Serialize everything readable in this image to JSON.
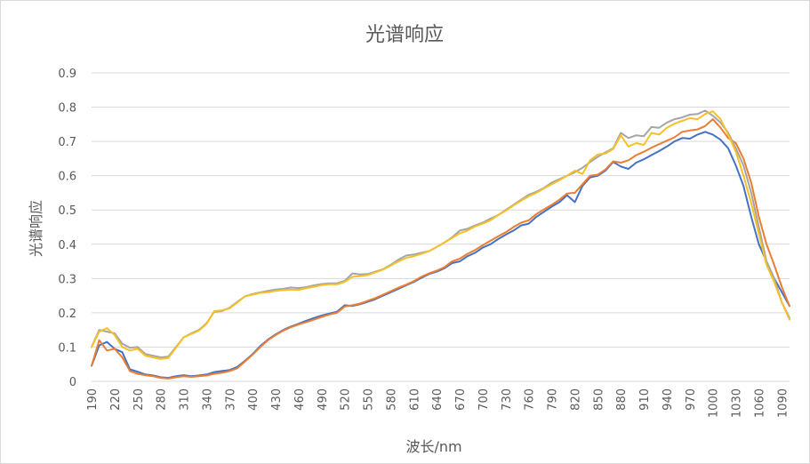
{
  "chart_data": {
    "type": "line",
    "title": "光谱响应",
    "xlabel": "波长/nm",
    "ylabel": "光谱响应",
    "ylim": [
      0,
      0.9
    ],
    "yticks": [
      "0",
      "0.1",
      "0.2",
      "0.3",
      "0.4",
      "0.5",
      "0.6",
      "0.7",
      "0.8",
      "0.9"
    ],
    "ytick_values": [
      0,
      0.1,
      0.2,
      0.3,
      0.4,
      0.5,
      0.6,
      0.7,
      0.8,
      0.9
    ],
    "xticks": [
      "190",
      "220",
      "250",
      "280",
      "310",
      "340",
      "370",
      "400",
      "430",
      "460",
      "490",
      "520",
      "550",
      "580",
      "610",
      "640",
      "670",
      "700",
      "730",
      "760",
      "790",
      "820",
      "850",
      "880",
      "910",
      "940",
      "970",
      "1000",
      "1030",
      "1060",
      "1090"
    ],
    "xtick_values": [
      190,
      220,
      250,
      280,
      310,
      340,
      370,
      400,
      430,
      460,
      490,
      520,
      550,
      580,
      610,
      640,
      670,
      700,
      730,
      760,
      790,
      820,
      850,
      880,
      910,
      940,
      970,
      1000,
      1030,
      1060,
      1090
    ],
    "xlim": [
      190,
      1100
    ],
    "grid": "horizontal",
    "x": [
      190,
      200,
      210,
      220,
      230,
      240,
      250,
      260,
      270,
      280,
      290,
      300,
      310,
      320,
      330,
      340,
      350,
      360,
      370,
      380,
      390,
      400,
      410,
      420,
      430,
      440,
      450,
      460,
      470,
      480,
      490,
      500,
      510,
      520,
      530,
      540,
      550,
      560,
      570,
      580,
      590,
      600,
      610,
      620,
      630,
      640,
      650,
      660,
      670,
      680,
      690,
      700,
      710,
      720,
      730,
      740,
      750,
      760,
      770,
      780,
      790,
      800,
      810,
      820,
      830,
      840,
      850,
      860,
      870,
      880,
      890,
      900,
      910,
      920,
      930,
      940,
      950,
      960,
      970,
      980,
      990,
      1000,
      1010,
      1020,
      1030,
      1040,
      1050,
      1060,
      1070,
      1080,
      1090,
      1100
    ],
    "series": [
      {
        "color": "#4472c4",
        "values": [
          0.045,
          0.105,
          0.115,
          0.095,
          0.085,
          0.035,
          0.028,
          0.02,
          0.017,
          0.012,
          0.01,
          0.015,
          0.018,
          0.015,
          0.017,
          0.02,
          0.027,
          0.03,
          0.033,
          0.042,
          0.06,
          0.08,
          0.103,
          0.122,
          0.137,
          0.15,
          0.16,
          0.168,
          0.177,
          0.185,
          0.192,
          0.198,
          0.203,
          0.222,
          0.22,
          0.225,
          0.232,
          0.24,
          0.25,
          0.26,
          0.27,
          0.28,
          0.29,
          0.302,
          0.313,
          0.32,
          0.33,
          0.345,
          0.35,
          0.365,
          0.375,
          0.39,
          0.4,
          0.415,
          0.428,
          0.44,
          0.455,
          0.46,
          0.48,
          0.495,
          0.51,
          0.523,
          0.543,
          0.523,
          0.57,
          0.595,
          0.6,
          0.615,
          0.64,
          0.627,
          0.62,
          0.638,
          0.648,
          0.66,
          0.672,
          0.685,
          0.7,
          0.71,
          0.708,
          0.72,
          0.728,
          0.72,
          0.705,
          0.68,
          0.63,
          0.57,
          0.48,
          0.4,
          0.35,
          0.3,
          0.26,
          0.22
        ]
      },
      {
        "color": "#ed7d31",
        "values": [
          0.045,
          0.12,
          0.09,
          0.095,
          0.07,
          0.03,
          0.022,
          0.018,
          0.015,
          0.01,
          0.008,
          0.012,
          0.015,
          0.013,
          0.015,
          0.017,
          0.022,
          0.025,
          0.03,
          0.038,
          0.058,
          0.078,
          0.1,
          0.12,
          0.135,
          0.148,
          0.158,
          0.166,
          0.173,
          0.18,
          0.188,
          0.195,
          0.2,
          0.218,
          0.222,
          0.227,
          0.235,
          0.243,
          0.253,
          0.263,
          0.273,
          0.282,
          0.292,
          0.305,
          0.315,
          0.323,
          0.333,
          0.35,
          0.358,
          0.372,
          0.383,
          0.397,
          0.41,
          0.423,
          0.435,
          0.45,
          0.463,
          0.47,
          0.488,
          0.502,
          0.515,
          0.53,
          0.548,
          0.55,
          0.575,
          0.6,
          0.603,
          0.618,
          0.642,
          0.638,
          0.645,
          0.66,
          0.67,
          0.682,
          0.692,
          0.702,
          0.712,
          0.728,
          0.732,
          0.735,
          0.745,
          0.765,
          0.74,
          0.71,
          0.695,
          0.65,
          0.58,
          0.48,
          0.4,
          0.34,
          0.275,
          0.22
        ]
      },
      {
        "color": "#a5a5a5",
        "values": [
          0.1,
          0.15,
          0.145,
          0.14,
          0.11,
          0.098,
          0.1,
          0.08,
          0.075,
          0.07,
          0.072,
          0.1,
          0.128,
          0.14,
          0.15,
          0.17,
          0.203,
          0.205,
          0.215,
          0.232,
          0.248,
          0.255,
          0.26,
          0.264,
          0.268,
          0.27,
          0.274,
          0.272,
          0.275,
          0.28,
          0.284,
          0.286,
          0.286,
          0.293,
          0.315,
          0.312,
          0.313,
          0.32,
          0.327,
          0.34,
          0.355,
          0.367,
          0.37,
          0.375,
          0.38,
          0.392,
          0.405,
          0.42,
          0.44,
          0.445,
          0.455,
          0.463,
          0.475,
          0.485,
          0.5,
          0.515,
          0.53,
          0.545,
          0.553,
          0.565,
          0.58,
          0.59,
          0.6,
          0.61,
          0.623,
          0.64,
          0.655,
          0.668,
          0.68,
          0.725,
          0.71,
          0.718,
          0.715,
          0.742,
          0.74,
          0.755,
          0.765,
          0.77,
          0.778,
          0.78,
          0.79,
          0.775,
          0.755,
          0.725,
          0.68,
          0.63,
          0.55,
          0.45,
          0.35,
          0.3,
          0.23,
          0.185
        ]
      },
      {
        "color": "#f5c126",
        "values": [
          0.1,
          0.145,
          0.155,
          0.135,
          0.1,
          0.09,
          0.095,
          0.075,
          0.07,
          0.065,
          0.068,
          0.098,
          0.128,
          0.138,
          0.148,
          0.168,
          0.205,
          0.207,
          0.213,
          0.23,
          0.248,
          0.253,
          0.258,
          0.26,
          0.264,
          0.266,
          0.268,
          0.267,
          0.272,
          0.276,
          0.281,
          0.283,
          0.283,
          0.29,
          0.305,
          0.307,
          0.31,
          0.318,
          0.326,
          0.338,
          0.35,
          0.36,
          0.365,
          0.372,
          0.38,
          0.392,
          0.405,
          0.418,
          0.432,
          0.44,
          0.452,
          0.46,
          0.47,
          0.485,
          0.498,
          0.513,
          0.527,
          0.54,
          0.55,
          0.563,
          0.575,
          0.587,
          0.6,
          0.615,
          0.605,
          0.645,
          0.662,
          0.665,
          0.678,
          0.718,
          0.685,
          0.695,
          0.69,
          0.725,
          0.72,
          0.74,
          0.752,
          0.76,
          0.768,
          0.765,
          0.78,
          0.788,
          0.765,
          0.72,
          0.67,
          0.6,
          0.52,
          0.43,
          0.34,
          0.29,
          0.23,
          0.18
        ]
      }
    ]
  }
}
